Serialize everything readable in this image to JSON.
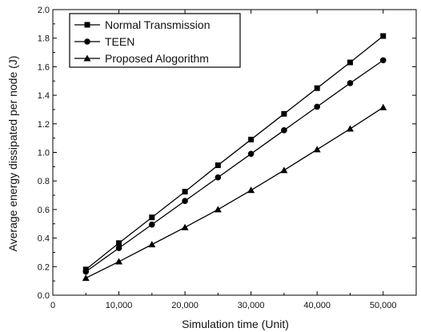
{
  "chart_data": {
    "type": "line",
    "title": "",
    "xlabel": "Simulation time (Unit)",
    "ylabel": "Average energy dissipated per node (J)",
    "xlim": [
      0,
      55000
    ],
    "ylim": [
      0.0,
      2.0
    ],
    "x_ticks": [
      0,
      10000,
      20000,
      30000,
      40000,
      50000
    ],
    "x_tick_labels": [
      "0",
      "10,000",
      "20,000",
      "30,000",
      "40,000",
      "50,000"
    ],
    "y_ticks": [
      0.0,
      0.2,
      0.4,
      0.6,
      0.8,
      1.0,
      1.2,
      1.4,
      1.6,
      1.8,
      2.0
    ],
    "y_tick_labels": [
      "0.0",
      "0.2",
      "0.4",
      "0.6",
      "0.8",
      "1.0",
      "1.2",
      "1.4",
      "1.6",
      "1.8",
      "2.0"
    ],
    "grid": false,
    "legend_position": "top-left",
    "x": [
      5000,
      10000,
      15000,
      20000,
      25000,
      30000,
      35000,
      40000,
      45000,
      50000
    ],
    "series": [
      {
        "name": "Normal Transmission",
        "marker": "square",
        "color": "#000000",
        "values": [
          0.18,
          0.365,
          0.545,
          0.725,
          0.91,
          1.09,
          1.27,
          1.45,
          1.63,
          1.815
        ]
      },
      {
        "name": "TEEN",
        "marker": "circle",
        "color": "#000000",
        "values": [
          0.165,
          0.33,
          0.495,
          0.66,
          0.825,
          0.99,
          1.155,
          1.32,
          1.485,
          1.645
        ]
      },
      {
        "name": "Proposed Alogorithm",
        "marker": "triangle",
        "color": "#000000",
        "values": [
          0.12,
          0.235,
          0.355,
          0.475,
          0.6,
          0.735,
          0.875,
          1.02,
          1.165,
          1.315
        ]
      }
    ]
  }
}
